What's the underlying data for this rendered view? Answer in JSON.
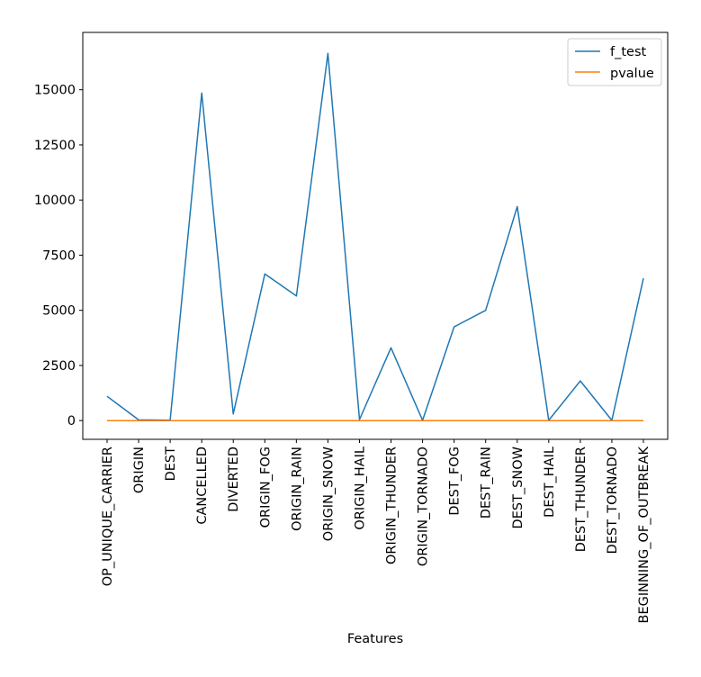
{
  "chart_data": {
    "type": "line",
    "title": "",
    "xlabel": "Features",
    "ylabel": "",
    "ylim": [
      -850,
      17600
    ],
    "yticks": [
      0,
      2500,
      5000,
      7500,
      10000,
      12500,
      15000
    ],
    "categories": [
      "OP_UNIQUE_CARRIER",
      "ORIGIN",
      "DEST",
      "CANCELLED",
      "DIVERTED",
      "ORIGIN_FOG",
      "ORIGIN_RAIN",
      "ORIGIN_SNOW",
      "ORIGIN_HAIL",
      "ORIGIN_THUNDER",
      "ORIGIN_TORNADO",
      "DEST_FOG",
      "DEST_RAIN",
      "DEST_SNOW",
      "DEST_HAIL",
      "DEST_THUNDER",
      "DEST_TORNADO",
      "BEGINNING_OF_OUTBREAK"
    ],
    "series": [
      {
        "name": "f_test",
        "color": "#1f77b4",
        "values": [
          1100,
          30,
          20,
          14850,
          300,
          6650,
          5650,
          16650,
          50,
          3300,
          10,
          4250,
          5000,
          9700,
          10,
          1800,
          10,
          6450
        ]
      },
      {
        "name": "pvalue",
        "color": "#ff7f0e",
        "values": [
          0,
          0,
          0,
          0,
          0,
          0,
          0,
          0,
          0,
          0,
          0,
          0,
          0,
          0,
          0,
          0,
          0,
          0
        ]
      }
    ],
    "legend_position": "top-right",
    "grid": false
  }
}
